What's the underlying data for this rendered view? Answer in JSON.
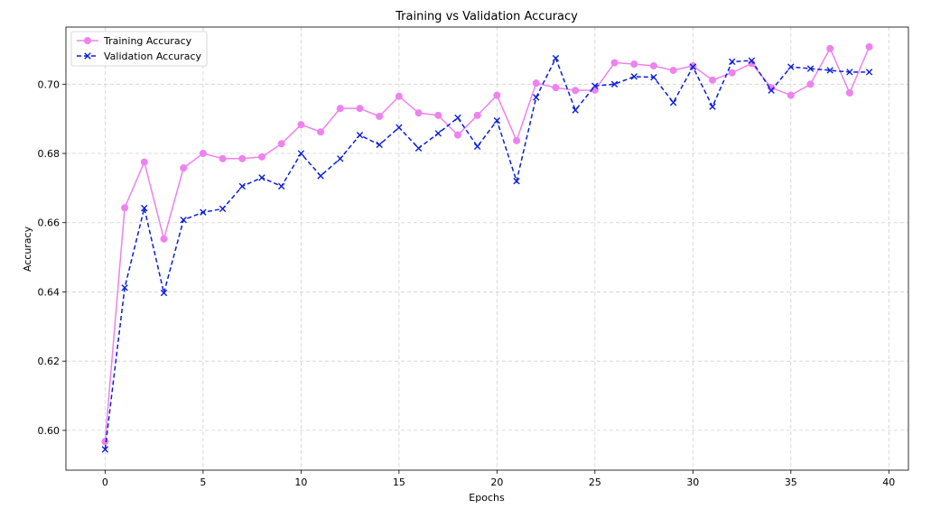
{
  "chart_data": {
    "type": "line",
    "title": "Training vs Validation Accuracy",
    "xlabel": "Epochs",
    "ylabel": "Accuracy",
    "xlim": [
      -2,
      41
    ],
    "ylim": [
      0.5885,
      0.7165
    ],
    "grid": true,
    "legend_position": "top-left",
    "x_ticks": [
      0,
      5,
      10,
      15,
      20,
      25,
      30,
      35,
      40
    ],
    "y_ticks": [
      0.6,
      0.62,
      0.64,
      0.66,
      0.68,
      0.7
    ],
    "x_tick_labels": [
      "0",
      "5",
      "10",
      "15",
      "20",
      "25",
      "30",
      "35",
      "40"
    ],
    "y_tick_labels": [
      "0.60",
      "0.62",
      "0.64",
      "0.66",
      "0.68",
      "0.70"
    ],
    "x": [
      0,
      1,
      2,
      3,
      4,
      5,
      6,
      7,
      8,
      9,
      10,
      11,
      12,
      13,
      14,
      15,
      16,
      17,
      18,
      19,
      20,
      21,
      22,
      23,
      24,
      25,
      26,
      27,
      28,
      29,
      30,
      31,
      32,
      33,
      34,
      35,
      36,
      37,
      38,
      39
    ],
    "series": [
      {
        "name": "Training Accuracy",
        "color": "#ee82ee",
        "line_style": "solid",
        "marker": "circle",
        "values": [
          0.5968,
          0.6643,
          0.6775,
          0.6553,
          0.6758,
          0.68,
          0.6785,
          0.6785,
          0.679,
          0.6828,
          0.6883,
          0.6862,
          0.693,
          0.693,
          0.6907,
          0.6965,
          0.6917,
          0.691,
          0.6853,
          0.691,
          0.6968,
          0.6837,
          0.7003,
          0.699,
          0.6982,
          0.6983,
          0.7062,
          0.7058,
          0.7053,
          0.704,
          0.7053,
          0.7012,
          0.7033,
          0.706,
          0.699,
          0.6968,
          0.7,
          0.7103,
          0.6975,
          0.7108
        ]
      },
      {
        "name": "Validation Accuracy",
        "color": "#0a1fdc",
        "line_style": "dashed",
        "marker": "x",
        "values": [
          0.5945,
          0.6412,
          0.6642,
          0.6397,
          0.6608,
          0.663,
          0.664,
          0.6705,
          0.673,
          0.6705,
          0.68,
          0.6735,
          0.6785,
          0.6853,
          0.6825,
          0.6875,
          0.6815,
          0.6858,
          0.6903,
          0.682,
          0.6895,
          0.672,
          0.6962,
          0.7075,
          0.6925,
          0.6995,
          0.7,
          0.7022,
          0.702,
          0.6947,
          0.705,
          0.6935,
          0.7065,
          0.7068,
          0.6982,
          0.705,
          0.7045,
          0.704,
          0.7035,
          0.7035
        ]
      }
    ]
  }
}
